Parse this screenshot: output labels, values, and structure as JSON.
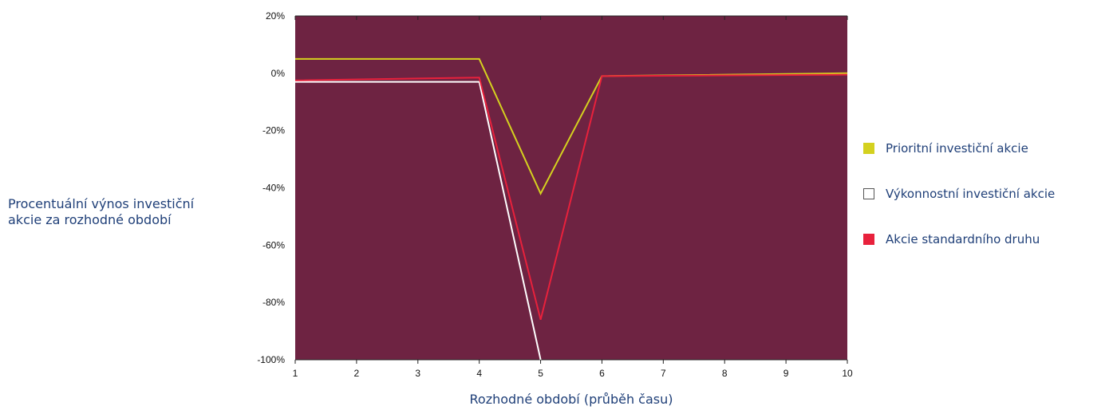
{
  "chart_data": {
    "type": "line",
    "xlabel": "Rozhodné období (průběh času)",
    "ylabel_lines": [
      "Procentuální výnos investiční",
      "akcie za rozhodné období"
    ],
    "x": [
      1,
      2,
      3,
      4,
      5,
      6,
      7,
      8,
      9,
      10
    ],
    "x_ticks": [
      "1",
      "2",
      "3",
      "4",
      "5",
      "6",
      "7",
      "8",
      "9",
      "10"
    ],
    "xlim": [
      1,
      10
    ],
    "ylim": [
      -100,
      20
    ],
    "y_ticks": [
      {
        "value": 20,
        "label": "20%"
      },
      {
        "value": 0,
        "label": "0%"
      },
      {
        "value": -20,
        "label": "-20%"
      },
      {
        "value": -40,
        "label": "-40%"
      },
      {
        "value": -60,
        "label": "-60%"
      },
      {
        "value": -80,
        "label": "-80%"
      },
      {
        "value": -100,
        "label": "-100%"
      }
    ],
    "plot_background": "#6e2342",
    "grid": false,
    "legend_position": "right",
    "series": [
      {
        "name": "Prioritní investiční akcie",
        "color": "#d4d11f",
        "swatch": "filled",
        "points": [
          [
            1,
            5
          ],
          [
            4,
            5
          ],
          [
            5,
            -42
          ],
          [
            6,
            -1
          ],
          [
            10,
            0
          ]
        ]
      },
      {
        "name": "Výkonnostní investiční akcie",
        "color": "#ffffff",
        "swatch": "outline",
        "points": [
          [
            1,
            -3
          ],
          [
            4,
            -3
          ],
          [
            5,
            -100
          ]
        ]
      },
      {
        "name": "Akcie standardního druhu",
        "color": "#e8213c",
        "swatch": "filled",
        "points": [
          [
            1,
            -2.5
          ],
          [
            4,
            -1.5
          ],
          [
            5,
            -86
          ],
          [
            6,
            -1
          ],
          [
            10,
            -0.5
          ]
        ]
      }
    ]
  }
}
